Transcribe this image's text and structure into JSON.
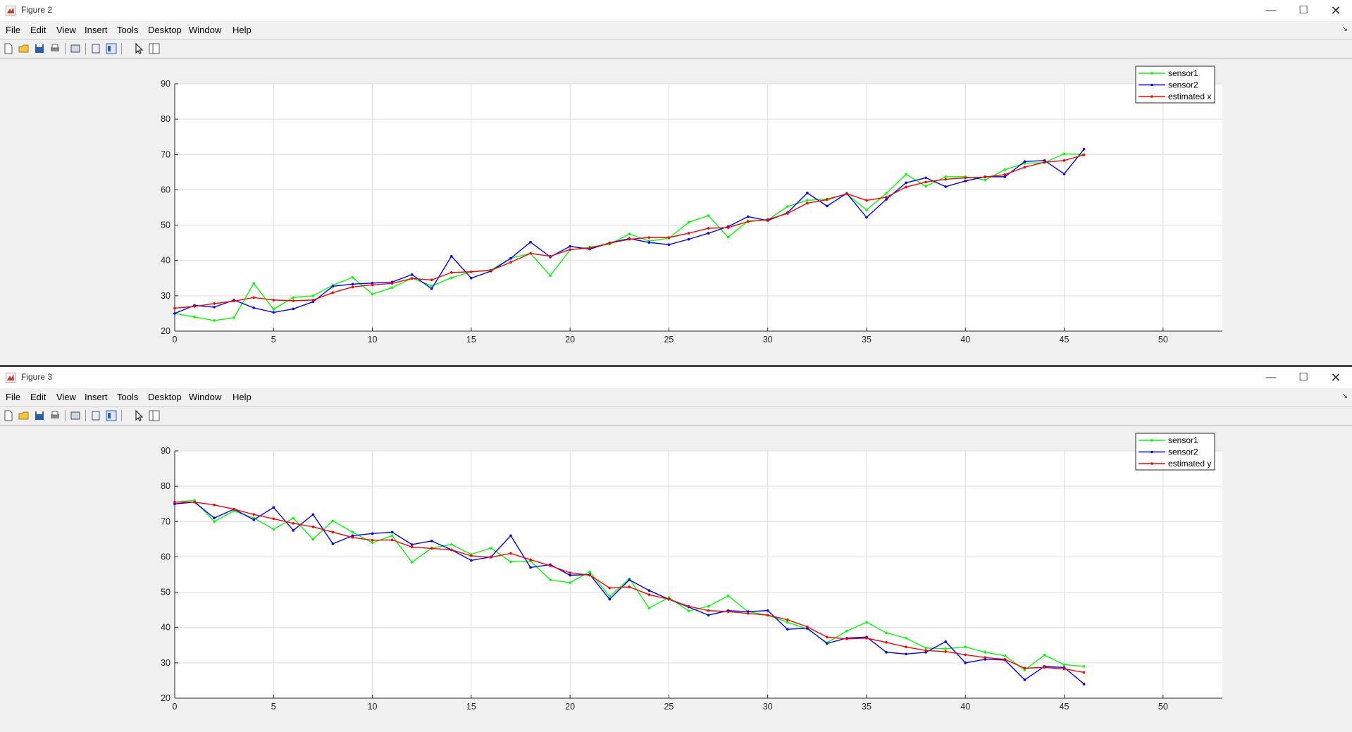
{
  "figures": [
    {
      "id": "fig2",
      "title": "Figure 2",
      "menu": [
        "File",
        "Edit",
        "View",
        "Insert",
        "Tools",
        "Desktop",
        "Window",
        "Help"
      ],
      "legend": [
        "sensor1",
        "sensor2",
        "estimated x"
      ],
      "chart_data": {
        "type": "line",
        "title": "",
        "xlabel": "",
        "ylabel": "",
        "xlim": [
          0,
          53
        ],
        "ylim": [
          20,
          90
        ],
        "xticks": [
          0,
          5,
          10,
          15,
          20,
          25,
          30,
          35,
          40,
          45,
          50
        ],
        "yticks": [
          20,
          30,
          40,
          50,
          60,
          70,
          80,
          90
        ],
        "grid": true,
        "legend_position": "top-right",
        "x": [
          0,
          1,
          2,
          3,
          4,
          5,
          6,
          7,
          8,
          9,
          10,
          11,
          12,
          13,
          14,
          15,
          16,
          17,
          18,
          19,
          20,
          21,
          22,
          23,
          24,
          25,
          26,
          27,
          28,
          29,
          30,
          31,
          32,
          33,
          34,
          35,
          36,
          37,
          38,
          39,
          40,
          41,
          42,
          43,
          44,
          45,
          46
        ],
        "series": [
          {
            "name": "sensor1",
            "color": "#00ff00",
            "values": [
              25.0,
              24.0,
              23.0,
              23.8,
              33.5,
              26.2,
              29.5,
              30.0,
              33.0,
              35.2,
              30.5,
              32.3,
              35.0,
              32.8,
              35.1,
              36.8,
              37.3,
              40.6,
              42.0,
              35.7,
              43.0,
              43.8,
              44.6,
              47.5,
              45.5,
              46.3,
              50.8,
              52.7,
              46.6,
              51.2,
              51.4,
              55.3,
              57.0,
              57.4,
              58.8,
              54.3,
              59.0,
              64.4,
              61.0,
              63.7,
              63.7,
              62.8,
              65.7,
              67.5,
              67.7,
              70.2,
              70.0
            ]
          },
          {
            "name": "sensor2",
            "color": "#0000ff",
            "values": [
              25.0,
              27.3,
              26.8,
              28.8,
              26.6,
              25.3,
              26.3,
              28.3,
              32.7,
              33.3,
              33.6,
              33.9,
              36.0,
              32.0,
              41.2,
              35.0,
              37.0,
              40.6,
              45.2,
              41.0,
              44.0,
              43.2,
              45.0,
              46.2,
              45.1,
              44.5,
              46.0,
              47.7,
              49.6,
              52.4,
              51.3,
              53.5,
              59.1,
              55.4,
              59.0,
              52.2,
              57.3,
              62.0,
              63.4,
              60.9,
              62.5,
              63.7,
              63.7,
              68.0,
              68.3,
              64.5,
              71.5
            ]
          },
          {
            "name": "estimated x",
            "color": "#ff0000",
            "values": [
              26.5,
              27.0,
              27.8,
              28.5,
              29.5,
              28.8,
              28.6,
              28.8,
              30.9,
              32.5,
              33.1,
              33.5,
              34.9,
              34.5,
              36.6,
              36.8,
              37.2,
              39.5,
              42.0,
              41.2,
              43.1,
              43.5,
              44.9,
              46.0,
              46.5,
              46.5,
              47.7,
              49.1,
              49.3,
              51.0,
              51.6,
              53.3,
              56.2,
              57.2,
              58.9,
              57.0,
              57.9,
              60.8,
              62.2,
              63.0,
              63.4,
              63.6,
              64.3,
              66.4,
              67.8,
              68.3,
              69.9
            ]
          }
        ]
      }
    },
    {
      "id": "fig3",
      "title": "Figure 3",
      "menu": [
        "File",
        "Edit",
        "View",
        "Insert",
        "Tools",
        "Desktop",
        "Window",
        "Help"
      ],
      "legend": [
        "sensor1",
        "sensor2",
        "estimated y"
      ],
      "chart_data": {
        "type": "line",
        "title": "",
        "xlabel": "",
        "ylabel": "",
        "xlim": [
          0,
          53
        ],
        "ylim": [
          20,
          90
        ],
        "xticks": [
          0,
          5,
          10,
          15,
          20,
          25,
          30,
          35,
          40,
          45,
          50
        ],
        "yticks": [
          20,
          30,
          40,
          50,
          60,
          70,
          80,
          90
        ],
        "grid": true,
        "legend_position": "top-right",
        "x": [
          0,
          1,
          2,
          3,
          4,
          5,
          6,
          7,
          8,
          9,
          10,
          11,
          12,
          13,
          14,
          15,
          16,
          17,
          18,
          19,
          20,
          21,
          22,
          23,
          24,
          25,
          26,
          27,
          28,
          29,
          30,
          31,
          32,
          33,
          34,
          35,
          36,
          37,
          38,
          39,
          40,
          41,
          42,
          43,
          44,
          45,
          46
        ],
        "series": [
          {
            "name": "sensor1",
            "color": "#00ff00",
            "values": [
              75.5,
              76.0,
              70.0,
              73.0,
              71.0,
              67.8,
              71.0,
              65.0,
              70.2,
              67.0,
              64.0,
              66.0,
              58.5,
              62.5,
              63.5,
              60.7,
              62.5,
              58.6,
              58.8,
              53.5,
              52.7,
              55.8,
              48.8,
              53.8,
              45.5,
              48.5,
              44.7,
              46.0,
              49.0,
              44.5,
              43.5,
              41.5,
              39.6,
              35.7,
              39.0,
              41.5,
              38.5,
              37.0,
              34.2,
              34.0,
              34.5,
              33.0,
              32.0,
              28.0,
              32.2,
              29.5,
              29.0
            ]
          },
          {
            "name": "sensor2",
            "color": "#0000ff",
            "values": [
              75.0,
              75.5,
              71.0,
              73.5,
              70.5,
              74.0,
              67.5,
              72.0,
              63.7,
              66.0,
              66.6,
              67.0,
              63.5,
              64.5,
              62.0,
              59.0,
              60.0,
              66.0,
              57.0,
              57.8,
              54.8,
              55.0,
              48.0,
              53.5,
              50.5,
              48.0,
              45.8,
              43.5,
              44.8,
              44.5,
              44.8,
              39.5,
              39.8,
              35.5,
              37.0,
              37.3,
              33.0,
              32.5,
              33.0,
              36.0,
              30.0,
              31.0,
              30.8,
              25.2,
              29.0,
              28.7,
              24.0
            ]
          },
          {
            "name": "estimated y",
            "color": "#ff0000",
            "values": [
              75.5,
              75.5,
              74.7,
              73.5,
              72.0,
              70.8,
              69.5,
              68.5,
              67.0,
              65.5,
              64.7,
              64.8,
              62.8,
              62.4,
              62.0,
              60.3,
              59.9,
              61.0,
              59.2,
              57.5,
              55.5,
              54.8,
              51.2,
              51.5,
              49.3,
              48.0,
              46.0,
              44.8,
              44.5,
              44.0,
              43.5,
              42.2,
              40.2,
              37.3,
              36.8,
              37.0,
              35.8,
              34.5,
              33.5,
              33.2,
              32.3,
              31.5,
              31.0,
              28.5,
              28.7,
              28.3,
              27.3
            ]
          }
        ]
      }
    }
  ]
}
